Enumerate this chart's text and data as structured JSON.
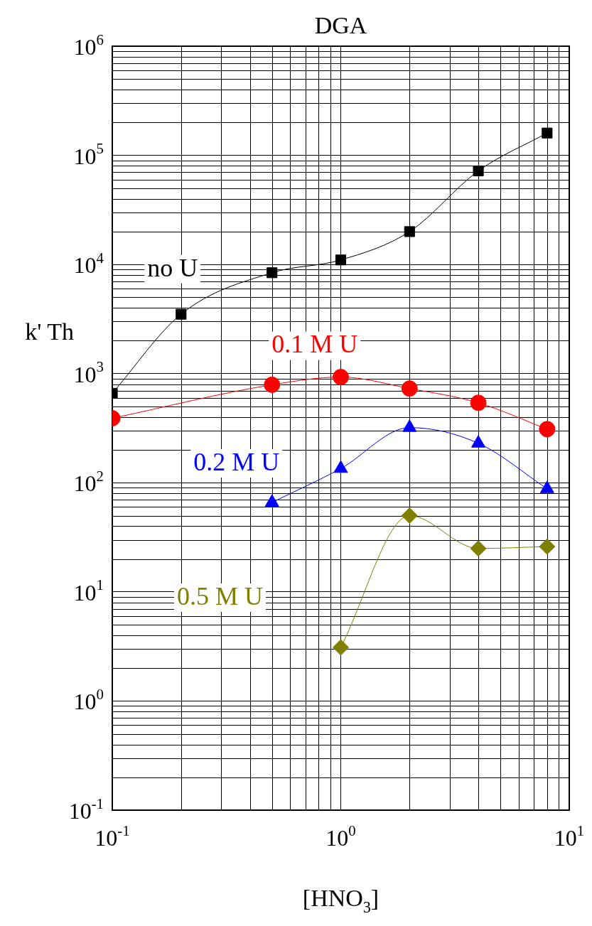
{
  "chart_data": {
    "type": "line",
    "title": "DGA",
    "xlabel": "[HNO$_{3}$]",
    "ylabel": "k' Th",
    "log": "xy",
    "grid": true,
    "legend": false,
    "xlim": [
      0.1,
      10
    ],
    "xticks": [
      {
        "value": 0.1,
        "label": "10$^{-1}$"
      },
      {
        "value": 1,
        "label": "10$^{0}$"
      },
      {
        "value": 10,
        "label": "10$^{1}$"
      }
    ],
    "ylim": [
      0.1,
      1000000
    ],
    "yticks": [
      {
        "value": 0.1,
        "label": "10$^{-1}$"
      },
      {
        "value": 1,
        "label": "10$^{0}$"
      },
      {
        "value": 10,
        "label": "10$^{1}$"
      },
      {
        "value": 100,
        "label": "10$^{2}$"
      },
      {
        "value": 1000,
        "label": "10$^{3}$"
      },
      {
        "value": 10000,
        "label": "10$^{4}$"
      },
      {
        "value": 100000,
        "label": "10$^{5}$"
      },
      {
        "value": 1000000,
        "label": "10$^{6}$"
      }
    ],
    "series": [
      {
        "name": "no U",
        "color": "#000000",
        "marker": "square",
        "x": [
          0.1,
          0.2,
          0.5,
          1,
          2,
          4,
          8
        ],
        "values": [
          660,
          3500,
          8400,
          11000,
          20000,
          72000,
          160000
        ]
      },
      {
        "name": "0.1 M U",
        "color": "#ff0000",
        "marker": "circle",
        "x": [
          0.1,
          0.5,
          1,
          2,
          4,
          8
        ],
        "values": [
          390,
          790,
          930,
          730,
          540,
          310
        ]
      },
      {
        "name": "0.2 M U",
        "color": "#0000ff",
        "marker": "triangle",
        "x": [
          0.5,
          1,
          2,
          4,
          8
        ],
        "values": [
          66,
          135,
          320,
          230,
          88
        ]
      },
      {
        "name": "0.5 M U",
        "color": "#808000",
        "marker": "diamond",
        "x": [
          1,
          2,
          4,
          8
        ],
        "values": [
          3.1,
          50,
          25,
          26
        ]
      }
    ]
  }
}
